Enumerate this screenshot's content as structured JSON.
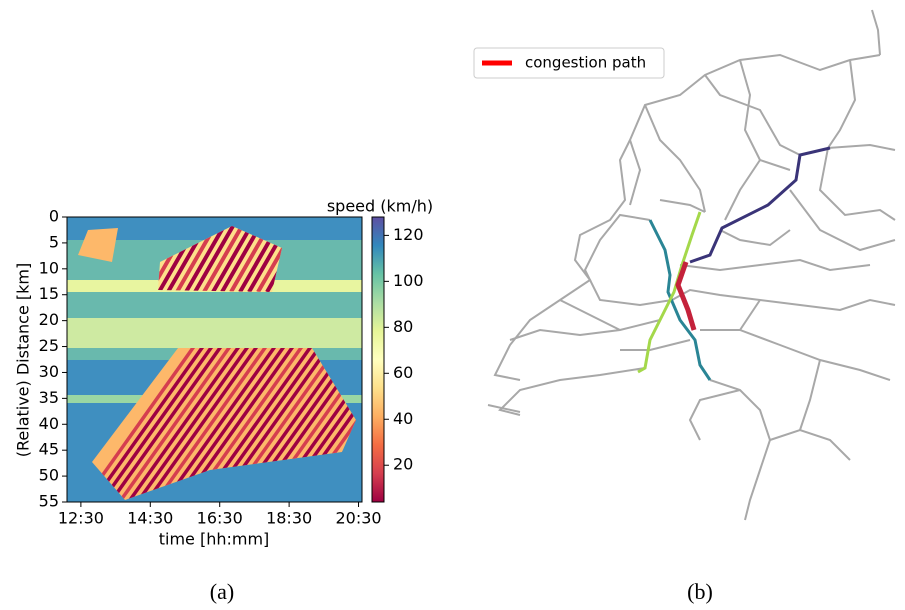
{
  "chart_data": [
    {
      "type": "heatmap",
      "xlabel": "time [hh:mm]",
      "ylabel": "(Relative) Distance [km]",
      "xlim": [
        12.1,
        20.6
      ],
      "xticks": [
        {
          "value": 12.5,
          "label": "12:30"
        },
        {
          "value": 14.5,
          "label": "14:30"
        },
        {
          "value": 16.5,
          "label": "16:30"
        },
        {
          "value": 18.5,
          "label": "18:30"
        },
        {
          "value": 20.5,
          "label": "20:30"
        }
      ],
      "ylim": [
        0,
        55
      ],
      "y_inverted": true,
      "yticks": [
        0,
        5,
        10,
        15,
        20,
        25,
        30,
        35,
        40,
        45,
        50,
        55
      ],
      "colorbar": {
        "label": "speed (km/h)",
        "lim": [
          4,
          128
        ],
        "ticks": [
          20,
          40,
          60,
          80,
          100,
          120
        ],
        "colors": [
          "#9e0142",
          "#d53e4f",
          "#f46d43",
          "#fdae61",
          "#fee08b",
          "#ffffbf",
          "#e6f598",
          "#abdda4",
          "#66c2a5",
          "#3288bd",
          "#5e4fa2"
        ]
      }
    },
    {
      "type": "map",
      "legend": {
        "name": "congestion path",
        "color": "#ff0000"
      }
    }
  ],
  "captions": [
    "(a)",
    "(b)"
  ]
}
